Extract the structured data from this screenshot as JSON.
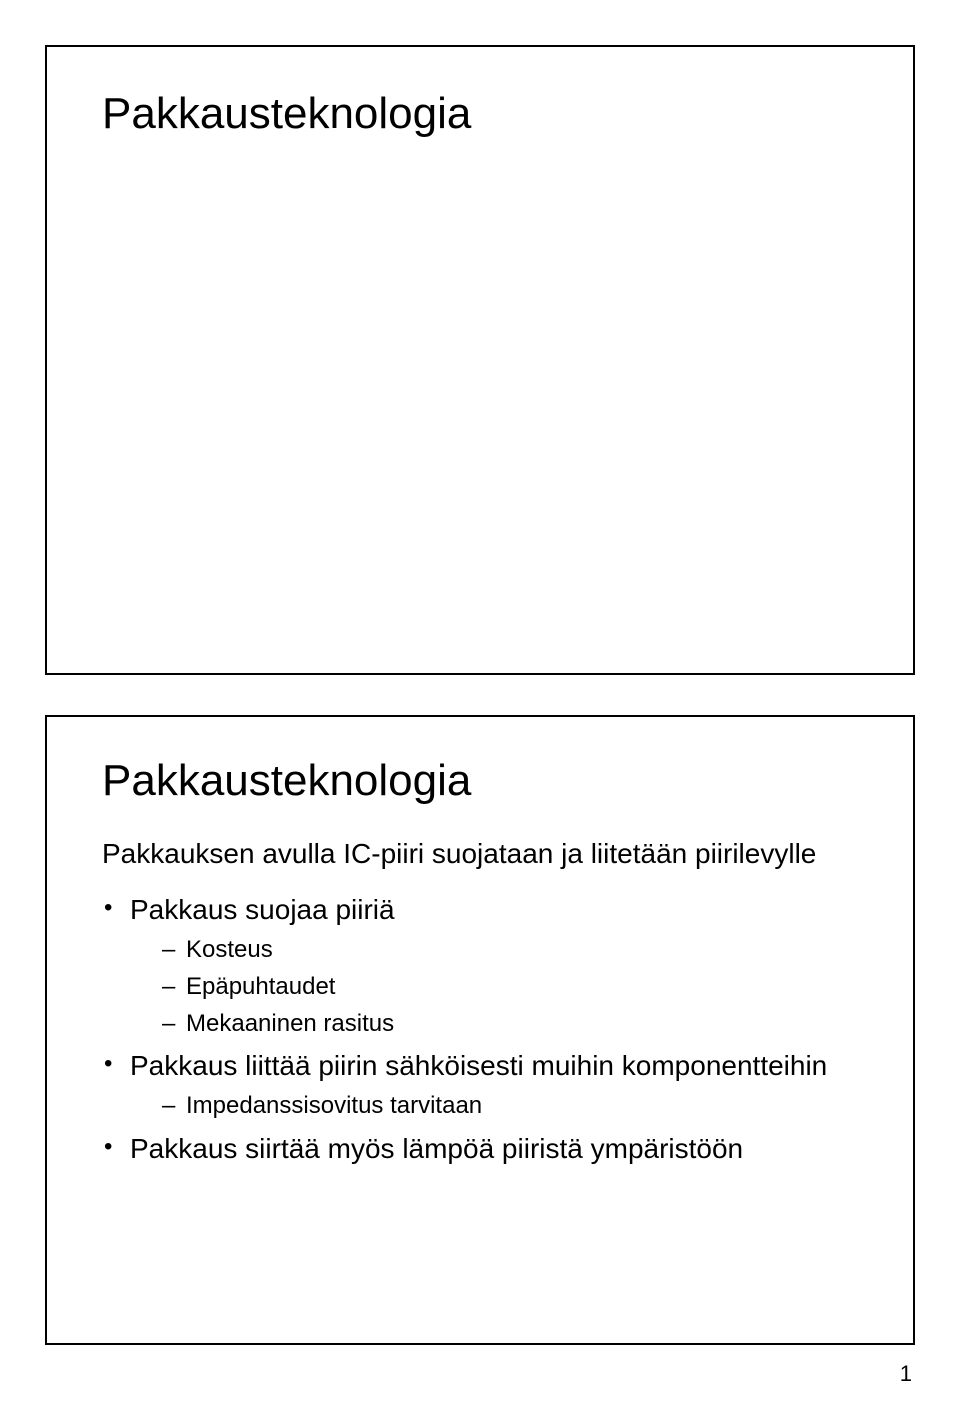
{
  "page_number": "1",
  "slide1": {
    "title": "Pakkausteknologia"
  },
  "slide2": {
    "title": "Pakkausteknologia",
    "intro": "Pakkauksen avulla IC-piiri suojataan ja liitetään piirilevylle",
    "bullets": [
      {
        "text": "Pakkaus suojaa piiriä",
        "sub": [
          "Kosteus",
          "Epäpuhtaudet",
          "Mekaaninen rasitus"
        ]
      },
      {
        "text": "Pakkaus liittää piirin sähköisesti muihin komponentteihin",
        "sub": [
          "Impedanssisovitus tarvitaan"
        ]
      },
      {
        "text": "Pakkaus siirtää myös lämpöä piiristä ympäristöön",
        "sub": []
      }
    ]
  }
}
